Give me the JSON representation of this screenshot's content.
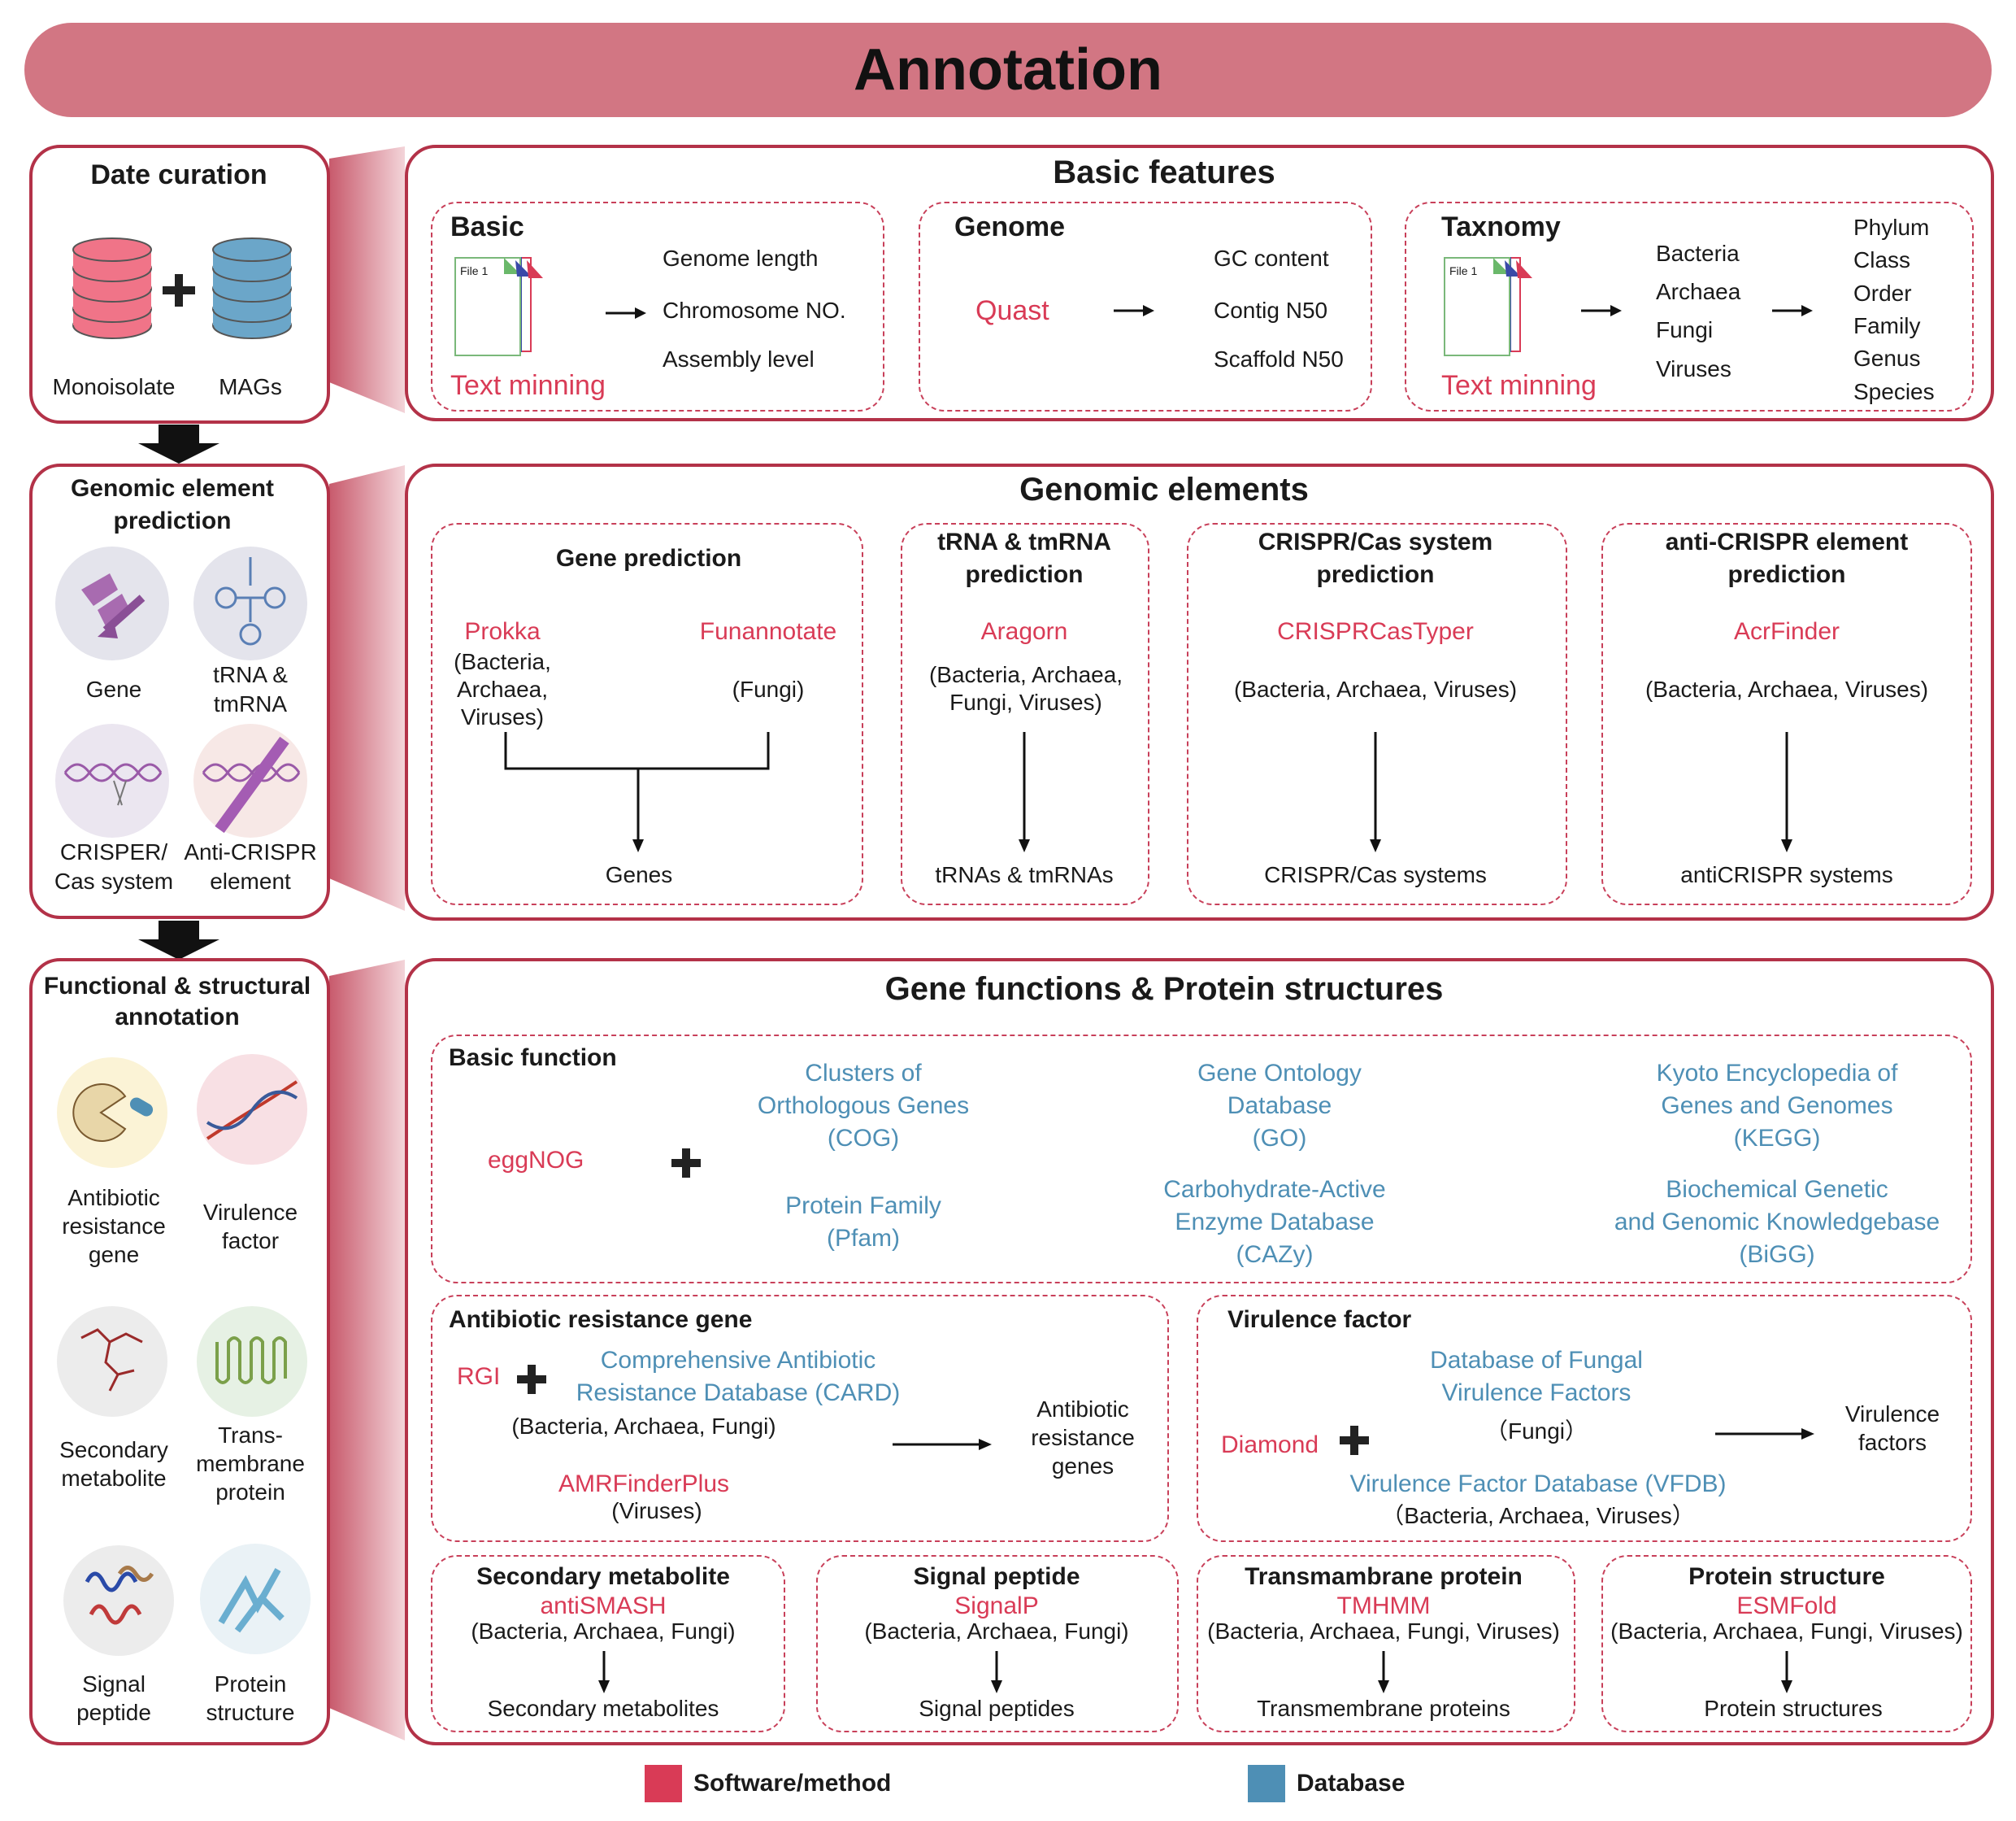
{
  "title": "Annotation",
  "left": {
    "curation": {
      "title": "Date curation",
      "monoisolate": "Monoisolate",
      "mags": "MAGs"
    },
    "genomic": {
      "title1": "Genomic element",
      "title2": "prediction",
      "items": [
        "Gene",
        "tRNA &",
        "tmRNA",
        "CRISPER/",
        "Cas system",
        "Anti-CRISPR",
        "element"
      ]
    },
    "functional": {
      "title1": "Functional & structural",
      "title2": "annotation",
      "items": [
        "Antibiotic",
        "resistance",
        "gene",
        "Virulence",
        "factor",
        "Secondary",
        "metabolite",
        "Trans-",
        "membrane",
        "protein",
        "Signal",
        "peptide",
        "Protein",
        "structure"
      ]
    }
  },
  "basic": {
    "title": "Basic features",
    "basic": {
      "title": "Basic",
      "file": "File 1",
      "method": "Text minning",
      "outputs": [
        "Genome length",
        "Chromosome NO.",
        "Assembly level"
      ]
    },
    "genome": {
      "title": "Genome",
      "method": "Quast",
      "outputs": [
        "GC content",
        "Contig N50",
        "Scaffold N50"
      ]
    },
    "taxonomy": {
      "title": "Taxnomy",
      "file": "File 1",
      "method": "Text minning",
      "kingdoms": [
        "Bacteria",
        "Archaea",
        "Fungi",
        "Viruses"
      ],
      "ranks": [
        "Phylum",
        "Class",
        "Order",
        "Family",
        "Genus",
        "Species"
      ]
    }
  },
  "genomic": {
    "title": "Genomic elements",
    "gene": {
      "title": "Gene prediction",
      "tool1": "Prokka",
      "tool1_scope": [
        "(Bacteria,",
        "Archaea,",
        "Viruses)"
      ],
      "tool2": "Funannotate",
      "tool2_scope": "(Fungi)",
      "output": "Genes"
    },
    "trna": {
      "title1": "tRNA & tmRNA",
      "title2": "prediction",
      "tool": "Aragorn",
      "scope": [
        "(Bacteria, Archaea,",
        "Fungi, Viruses)"
      ],
      "output": "tRNAs & tmRNAs"
    },
    "crispr": {
      "title1": "CRISPR/Cas system",
      "title2": "prediction",
      "tool": "CRISPRCasTyper",
      "scope": "(Bacteria, Archaea, Viruses)",
      "output": "CRISPR/Cas systems"
    },
    "acr": {
      "title1": "anti-CRISPR element",
      "title2": "prediction",
      "tool": "AcrFinder",
      "scope": "(Bacteria, Archaea, Viruses)",
      "output": "antiCRISPR systems"
    }
  },
  "functions": {
    "title": "Gene functions & Protein structures",
    "basic": {
      "title": "Basic function",
      "tool": "eggNOG",
      "cog": [
        "Clusters of",
        "Orthologous Genes",
        "(COG)"
      ],
      "pfam": [
        "Protein Family",
        "(Pfam)"
      ],
      "go": [
        "Gene Ontology",
        "Database",
        "(GO)"
      ],
      "cazy": [
        "Carbohydrate-Active",
        "Enzyme Database",
        "(CAZy)"
      ],
      "kegg": [
        "Kyoto Encyclopedia of",
        "Genes and Genomes",
        "(KEGG)"
      ],
      "bigg": [
        "Biochemical Genetic",
        "and Genomic Knowledgebase",
        "(BiGG)"
      ]
    },
    "arg": {
      "title": "Antibiotic resistance gene",
      "tool1": "RGI",
      "card": [
        "Comprehensive Antibiotic",
        "Resistance Database (CARD)"
      ],
      "scope1": "(Bacteria, Archaea, Fungi)",
      "tool2": "AMRFinderPlus",
      "scope2": "(Viruses)",
      "output": [
        "Antibiotic",
        "resistance",
        "genes"
      ]
    },
    "vf": {
      "title": "Virulence factor",
      "tool": "Diamond",
      "dfvf": [
        "Database of Fungal",
        "Virulence Factors"
      ],
      "scope1": "（Fungi）",
      "vfdb": "Virulence Factor Database (VFDB)",
      "scope2": "（Bacteria, Archaea, Viruses）",
      "output": [
        "Virulence",
        "factors"
      ]
    },
    "sm": {
      "title": "Secondary metabolite",
      "tool": "antiSMASH",
      "scope": "(Bacteria, Archaea, Fungi)",
      "output": "Secondary metabolites"
    },
    "sp": {
      "title": "Signal peptide",
      "tool": "SignalP",
      "scope": "(Bacteria, Archaea, Fungi)",
      "output": "Signal peptides"
    },
    "tm": {
      "title": "Transmambrane protein",
      "tool": "TMHMM",
      "scope": "(Bacteria, Archaea, Fungi, Viruses)",
      "output": "Transmembrane proteins"
    },
    "ps": {
      "title": "Protein structure",
      "tool": "ESMFold",
      "scope": "(Bacteria, Archaea, Fungi, Viruses)",
      "output": "Protein structures"
    }
  },
  "legend": {
    "software": "Software/method",
    "database": "Database"
  },
  "colors": {
    "software": "#d93b56",
    "database": "#4e8fb5",
    "banner": "#d27683",
    "border": "#b33248"
  }
}
